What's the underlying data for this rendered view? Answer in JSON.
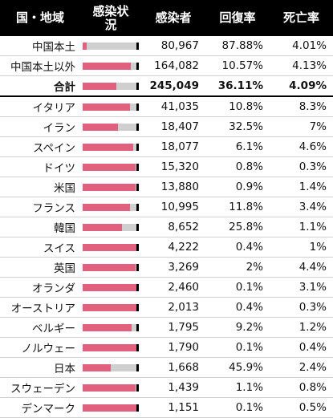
{
  "header": {
    "country": "国・地域",
    "status_line1": "感染状",
    "status_line2": "況",
    "cases": "感染者",
    "recovery": "回復率",
    "death": "死亡率"
  },
  "colors": {
    "active": "#e0607e",
    "recovered": "#cfcfcf",
    "death": "#000000"
  },
  "rows": [
    {
      "name": "中国本土",
      "cases": "80,967",
      "recovery": "87.88%",
      "death": "4.01%",
      "r": 0.8788,
      "d": 0.0401,
      "total": false
    },
    {
      "name": "中国本土以外",
      "cases": "164,082",
      "recovery": "10.57%",
      "death": "4.13%",
      "r": 0.1057,
      "d": 0.0413,
      "total": false
    },
    {
      "name": "合計",
      "cases": "245,049",
      "recovery": "36.11%",
      "death": "4.09%",
      "r": 0.3611,
      "d": 0.0409,
      "total": true
    },
    {
      "name": "イタリア",
      "cases": "41,035",
      "recovery": "10.8%",
      "death": "8.3%",
      "r": 0.108,
      "d": 0.083,
      "total": false
    },
    {
      "name": "イラン",
      "cases": "18,407",
      "recovery": "32.5%",
      "death": "7%",
      "r": 0.325,
      "d": 0.07,
      "total": false
    },
    {
      "name": "スペイン",
      "cases": "18,077",
      "recovery": "6.1%",
      "death": "4.6%",
      "r": 0.061,
      "d": 0.046,
      "total": false
    },
    {
      "name": "ドイツ",
      "cases": "15,320",
      "recovery": "0.8%",
      "death": "0.3%",
      "r": 0.008,
      "d": 0.003,
      "total": false
    },
    {
      "name": "米国",
      "cases": "13,880",
      "recovery": "0.9%",
      "death": "1.4%",
      "r": 0.009,
      "d": 0.014,
      "total": false
    },
    {
      "name": "フランス",
      "cases": "10,995",
      "recovery": "11.8%",
      "death": "3.4%",
      "r": 0.118,
      "d": 0.034,
      "total": false
    },
    {
      "name": "韓国",
      "cases": "8,652",
      "recovery": "25.8%",
      "death": "1.1%",
      "r": 0.258,
      "d": 0.011,
      "total": false
    },
    {
      "name": "スイス",
      "cases": "4,222",
      "recovery": "0.4%",
      "death": "1%",
      "r": 0.004,
      "d": 0.01,
      "total": false
    },
    {
      "name": "英国",
      "cases": "3,269",
      "recovery": "2%",
      "death": "4.4%",
      "r": 0.02,
      "d": 0.044,
      "total": false
    },
    {
      "name": "オランダ",
      "cases": "2,460",
      "recovery": "0.1%",
      "death": "3.1%",
      "r": 0.001,
      "d": 0.031,
      "total": false
    },
    {
      "name": "オーストリア",
      "cases": "2,013",
      "recovery": "0.4%",
      "death": "0.3%",
      "r": 0.004,
      "d": 0.003,
      "total": false
    },
    {
      "name": "ベルギー",
      "cases": "1,795",
      "recovery": "9.2%",
      "death": "1.2%",
      "r": 0.092,
      "d": 0.012,
      "total": false
    },
    {
      "name": "ノルウェー",
      "cases": "1,790",
      "recovery": "0.1%",
      "death": "0.4%",
      "r": 0.001,
      "d": 0.004,
      "total": false
    },
    {
      "name": "日本",
      "cases": "1,668",
      "recovery": "45.9%",
      "death": "2.4%",
      "r": 0.459,
      "d": 0.024,
      "total": false
    },
    {
      "name": "スウェーデン",
      "cases": "1,439",
      "recovery": "1.1%",
      "death": "0.8%",
      "r": 0.011,
      "d": 0.008,
      "total": false
    },
    {
      "name": "デンマーク",
      "cases": "1,151",
      "recovery": "0.1%",
      "death": "0.5%",
      "r": 0.001,
      "d": 0.005,
      "total": false
    }
  ]
}
